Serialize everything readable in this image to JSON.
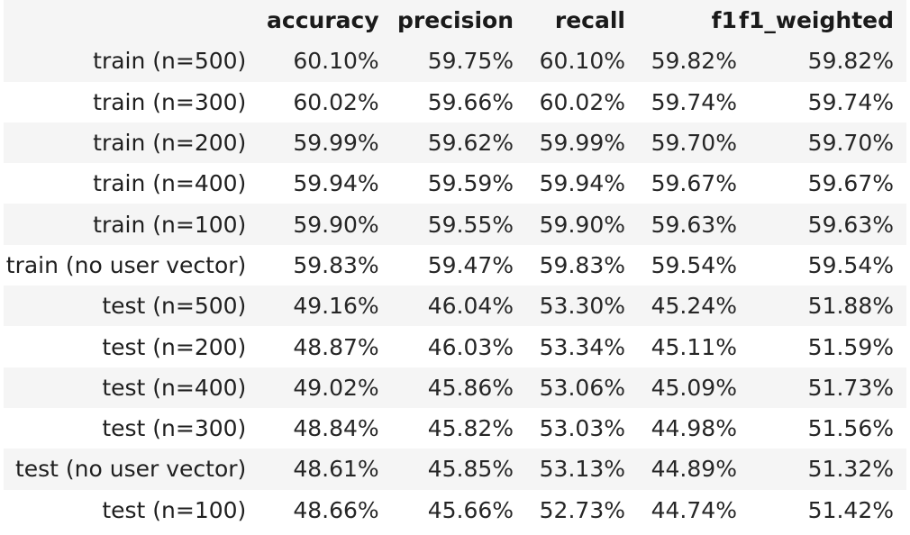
{
  "table": {
    "columns": [
      "",
      "accuracy",
      "precision",
      "recall",
      "f1",
      "f1_weighted"
    ],
    "rows": [
      {
        "label": "train (n=500)",
        "accuracy": "60.10%",
        "precision": "59.75%",
        "recall": "60.10%",
        "f1": "59.82%",
        "f1_weighted": "59.82%"
      },
      {
        "label": "train (n=300)",
        "accuracy": "60.02%",
        "precision": "59.66%",
        "recall": "60.02%",
        "f1": "59.74%",
        "f1_weighted": "59.74%"
      },
      {
        "label": "train (n=200)",
        "accuracy": "59.99%",
        "precision": "59.62%",
        "recall": "59.99%",
        "f1": "59.70%",
        "f1_weighted": "59.70%"
      },
      {
        "label": "train (n=400)",
        "accuracy": "59.94%",
        "precision": "59.59%",
        "recall": "59.94%",
        "f1": "59.67%",
        "f1_weighted": "59.67%"
      },
      {
        "label": "train (n=100)",
        "accuracy": "59.90%",
        "precision": "59.55%",
        "recall": "59.90%",
        "f1": "59.63%",
        "f1_weighted": "59.63%"
      },
      {
        "label": "train (no user vector)",
        "accuracy": "59.83%",
        "precision": "59.47%",
        "recall": "59.83%",
        "f1": "59.54%",
        "f1_weighted": "59.54%"
      },
      {
        "label": "test (n=500)",
        "accuracy": "49.16%",
        "precision": "46.04%",
        "recall": "53.30%",
        "f1": "45.24%",
        "f1_weighted": "51.88%"
      },
      {
        "label": "test (n=200)",
        "accuracy": "48.87%",
        "precision": "46.03%",
        "recall": "53.34%",
        "f1": "45.11%",
        "f1_weighted": "51.59%"
      },
      {
        "label": "test (n=400)",
        "accuracy": "49.02%",
        "precision": "45.86%",
        "recall": "53.06%",
        "f1": "45.09%",
        "f1_weighted": "51.73%"
      },
      {
        "label": "test (n=300)",
        "accuracy": "48.84%",
        "precision": "45.82%",
        "recall": "53.03%",
        "f1": "44.98%",
        "f1_weighted": "51.56%"
      },
      {
        "label": "test (no user vector)",
        "accuracy": "48.61%",
        "precision": "45.85%",
        "recall": "53.13%",
        "f1": "44.89%",
        "f1_weighted": "51.32%"
      },
      {
        "label": "test (n=100)",
        "accuracy": "48.66%",
        "precision": "45.66%",
        "recall": "52.73%",
        "f1": "44.74%",
        "f1_weighted": "51.42%"
      }
    ]
  },
  "colors": {
    "header_bg": "#f5f5f5",
    "stripe_bg": "#f5f5f5",
    "row_bg": "#ffffff",
    "text": "#1f1f1f"
  }
}
